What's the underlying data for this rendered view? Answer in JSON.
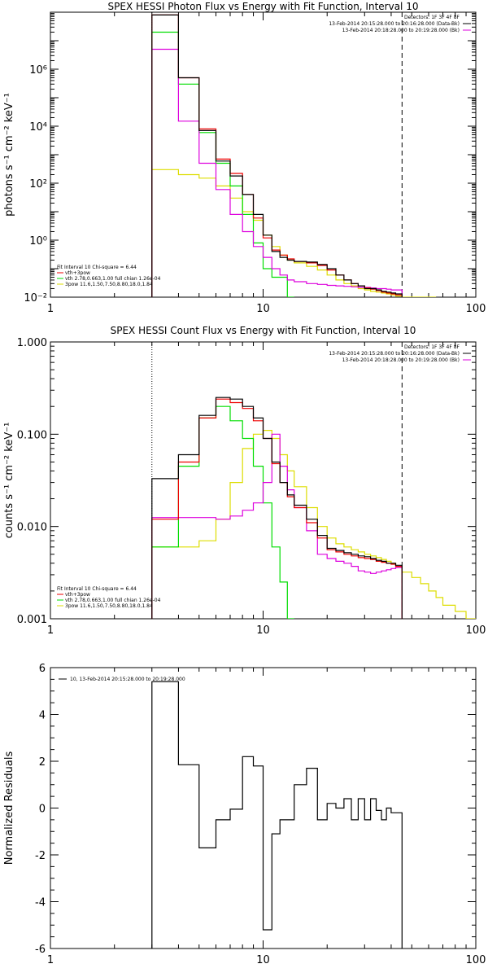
{
  "colors": {
    "total": "#000000",
    "vth": "#00dd00",
    "pow": "#dddd00",
    "sum": "#ee0000",
    "bk": "#dd00dd",
    "resid": "#000000"
  },
  "chart_data": [
    {
      "type": "line",
      "title": "SPEX HESSI Photon Flux vs Energy with Fit Function, Interval 10",
      "ylabel": "photons s⁻¹ cm⁻² keV⁻¹",
      "xlabel": "",
      "xscale": "log",
      "yscale": "log",
      "xlim": [
        1,
        100
      ],
      "ylim": [
        0.01,
        100000000.0
      ],
      "xtick_labels": [
        "1",
        "10",
        "100"
      ],
      "ytick_labels": [
        "10⁻²",
        "10⁰",
        "10²",
        "10⁴",
        "10⁶"
      ],
      "legend_top": [
        "Detectors: 1F 3F 4F 8F",
        "13-Feb-2014 20:15:28.000 to 20:16:28.000 (Data-Bk)",
        "13-Feb-2014 20:18:28.000 to 20:19:28.000 (Bk)"
      ],
      "legend_top_series": [
        "total",
        "bk"
      ],
      "legend_bottom": [
        "Fit Interval 10   Chi-square = 6.44",
        "vth+3pow",
        "vth 2.78,0.663,1.00  full chian 1.26e-04",
        "3pow 11.6,1.50,7.50,8.80,18.0,1.84"
      ],
      "legend_bottom_series": [
        "none",
        "sum",
        "vth",
        "pow"
      ],
      "dotted_line_x": 3,
      "dashed_line_x": 45,
      "series": [
        {
          "name": "Data-Bk",
          "key": "total",
          "edges": [
            3,
            4,
            5,
            6,
            7,
            8,
            9,
            10,
            11,
            12,
            13,
            14,
            16,
            18,
            20,
            22,
            24,
            26,
            28,
            30,
            32,
            34,
            36,
            38,
            40,
            42,
            45
          ],
          "values": [
            80000000.0,
            500000,
            7000,
            600,
            180,
            40,
            8,
            1.5,
            0.4,
            0.25,
            0.2,
            0.18,
            0.17,
            0.14,
            0.1,
            0.06,
            0.04,
            0.03,
            0.025,
            0.02,
            0.02,
            0.018,
            0.016,
            0.015,
            0.014,
            0.013
          ]
        },
        {
          "name": "vth+3pow",
          "key": "sum",
          "edges": [
            3,
            4,
            5,
            6,
            7,
            8,
            9,
            10,
            11,
            12,
            13,
            14,
            16,
            18,
            20,
            22,
            24,
            26,
            28,
            30,
            32,
            34,
            36,
            38,
            40,
            42,
            45
          ],
          "values": [
            80000000.0,
            500000,
            8000,
            700,
            220,
            40,
            6,
            1.2,
            0.45,
            0.3,
            0.22,
            0.18,
            0.16,
            0.13,
            0.09,
            0.06,
            0.04,
            0.03,
            0.025,
            0.021,
            0.019,
            0.017,
            0.015,
            0.014,
            0.013,
            0.012
          ]
        },
        {
          "name": "vth",
          "key": "vth",
          "edges": [
            3,
            4,
            5,
            6,
            7,
            8,
            9,
            10,
            11,
            12,
            13,
            14
          ],
          "values": [
            20000000.0,
            300000,
            6000,
            500,
            80,
            8,
            0.8,
            0.1,
            0.05,
            0.05,
            0.01
          ]
        },
        {
          "name": "3pow",
          "key": "pow",
          "edges": [
            3,
            4,
            5,
            6,
            7,
            8,
            9,
            10,
            11,
            12,
            13,
            14,
            16,
            18,
            20,
            22,
            24,
            26,
            28,
            30,
            32,
            34,
            36,
            38,
            40,
            42,
            45,
            50,
            55,
            60,
            65
          ],
          "values": [
            300,
            200,
            150,
            80,
            30,
            10,
            5,
            1.5,
            0.6,
            0.3,
            0.2,
            0.16,
            0.12,
            0.09,
            0.06,
            0.04,
            0.03,
            0.025,
            0.02,
            0.018,
            0.016,
            0.015,
            0.014,
            0.013,
            0.012,
            0.011,
            0.01,
            0.009,
            0.008,
            0.007
          ]
        },
        {
          "name": "Bk",
          "key": "bk",
          "edges": [
            3,
            4,
            5,
            6,
            7,
            8,
            9,
            10,
            11,
            12,
            13,
            14,
            16,
            18,
            20,
            22,
            24,
            26,
            28,
            30,
            32,
            34,
            36,
            38,
            40,
            42,
            45
          ],
          "values": [
            5000000.0,
            15000,
            500,
            60,
            8,
            2,
            0.6,
            0.25,
            0.1,
            0.06,
            0.04,
            0.035,
            0.03,
            0.028,
            0.026,
            0.025,
            0.024,
            0.023,
            0.022,
            0.022,
            0.021,
            0.02,
            0.02,
            0.019,
            0.018,
            0.018
          ]
        }
      ]
    },
    {
      "type": "line",
      "title": "SPEX HESSI Count Flux vs Energy with Fit Function, Interval 10",
      "ylabel": "counts s⁻¹ cm⁻² keV⁻¹",
      "xlabel": "",
      "xscale": "log",
      "yscale": "log",
      "xlim": [
        1,
        100
      ],
      "ylim": [
        0.001,
        1.0
      ],
      "xtick_labels": [
        "1",
        "10",
        "100"
      ],
      "ytick_labels": [
        "0.001",
        "0.010",
        "0.100",
        "1.000"
      ],
      "legend_top": [
        "Detectors: 1F 3F 4F 8F",
        "13-Feb-2014 20:15:28.000 to 20:16:28.000 (Data-Bk)",
        "13-Feb-2014 20:18:28.000 to 20:19:28.000 (Bk)"
      ],
      "legend_top_series": [
        "total",
        "bk"
      ],
      "legend_bottom": [
        "Fit Interval 10   Chi-square = 6.44",
        "vth+3pow",
        "vth 2.78,0.663,1.00  full chian 1.26e-04",
        "3pow 11.6,1.50,7.50,8.80,18.0,1.84"
      ],
      "legend_bottom_series": [
        "none",
        "sum",
        "vth",
        "pow"
      ],
      "dotted_line_x": 3,
      "dashed_line_x": 45,
      "series": [
        {
          "name": "Data-Bk",
          "key": "total",
          "edges": [
            3,
            4,
            5,
            6,
            7,
            8,
            9,
            10,
            11,
            12,
            13,
            14,
            16,
            18,
            20,
            22,
            24,
            26,
            28,
            30,
            32,
            34,
            36,
            38,
            40,
            42,
            45
          ],
          "values": [
            0.033,
            0.06,
            0.16,
            0.25,
            0.24,
            0.2,
            0.15,
            0.09,
            0.05,
            0.03,
            0.022,
            0.017,
            0.012,
            0.008,
            0.0058,
            0.0055,
            0.0052,
            0.005,
            0.0048,
            0.0047,
            0.0045,
            0.0043,
            0.0042,
            0.004,
            0.004,
            0.0038
          ]
        },
        {
          "name": "vth+3pow",
          "key": "sum",
          "edges": [
            3,
            4,
            5,
            6,
            7,
            8,
            9,
            10,
            11,
            12,
            13,
            14,
            16,
            18,
            20,
            22,
            24,
            26,
            28,
            30,
            32,
            34,
            36,
            38,
            40,
            42,
            45
          ],
          "values": [
            0.012,
            0.05,
            0.15,
            0.24,
            0.22,
            0.19,
            0.14,
            0.09,
            0.048,
            0.03,
            0.021,
            0.016,
            0.011,
            0.0075,
            0.0056,
            0.0053,
            0.005,
            0.0048,
            0.0046,
            0.0045,
            0.0044,
            0.0042,
            0.0041,
            0.004,
            0.0039,
            0.0037
          ]
        },
        {
          "name": "vth",
          "key": "vth",
          "edges": [
            3,
            4,
            5,
            6,
            7,
            8,
            9,
            10,
            11,
            12,
            13,
            14
          ],
          "values": [
            0.006,
            0.045,
            0.15,
            0.2,
            0.14,
            0.09,
            0.045,
            0.018,
            0.006,
            0.0025,
            0.001
          ]
        },
        {
          "name": "3pow",
          "key": "pow",
          "edges": [
            3,
            4,
            5,
            6,
            7,
            8,
            9,
            10,
            11,
            12,
            13,
            14,
            16,
            18,
            20,
            22,
            24,
            26,
            28,
            30,
            32,
            34,
            36,
            38,
            40,
            42,
            45,
            50,
            55,
            60,
            65,
            70,
            80,
            90,
            100
          ],
          "values": [
            0.006,
            0.006,
            0.007,
            0.012,
            0.03,
            0.07,
            0.1,
            0.11,
            0.09,
            0.06,
            0.04,
            0.027,
            0.016,
            0.01,
            0.0075,
            0.0065,
            0.006,
            0.0056,
            0.0053,
            0.005,
            0.0048,
            0.0046,
            0.0044,
            0.0042,
            0.004,
            0.0037,
            0.0032,
            0.0028,
            0.0024,
            0.002,
            0.0017,
            0.0014,
            0.0012,
            0.001
          ]
        },
        {
          "name": "Bk",
          "key": "bk",
          "edges": [
            3,
            4,
            5,
            6,
            7,
            8,
            9,
            10,
            11,
            12,
            13,
            14,
            16,
            18,
            20,
            22,
            24,
            26,
            28,
            30,
            32,
            34,
            36,
            38,
            40,
            42,
            45
          ],
          "values": [
            0.0125,
            0.0125,
            0.0125,
            0.012,
            0.013,
            0.015,
            0.018,
            0.03,
            0.1,
            0.045,
            0.025,
            0.016,
            0.009,
            0.005,
            0.0045,
            0.0042,
            0.004,
            0.0037,
            0.0033,
            0.0032,
            0.0031,
            0.0032,
            0.0033,
            0.0034,
            0.0035,
            0.0036
          ]
        }
      ]
    },
    {
      "type": "line",
      "title": "",
      "ylabel": "Normalized Residuals",
      "xlabel": "",
      "xscale": "log",
      "yscale": "linear",
      "xlim": [
        1,
        100
      ],
      "ylim": [
        -6,
        6
      ],
      "xtick_labels": [
        "1",
        "10",
        "100"
      ],
      "ytick_labels": [
        "-6",
        "-4",
        "-2",
        "0",
        "2",
        "4",
        "6"
      ],
      "legend_top": [
        "10, 13-Feb-2014 20:15:28.000 to 20:19:28.000"
      ],
      "series": [
        {
          "name": "10, 13-Feb-2014 20:15:28.000 to 20:19:28.000",
          "key": "resid",
          "edges": [
            3,
            4,
            5,
            6,
            7,
            8,
            9,
            10,
            11,
            12,
            13,
            14,
            16,
            18,
            20,
            22,
            24,
            26,
            28,
            30,
            32,
            34,
            36,
            38,
            40,
            42,
            45
          ],
          "values": [
            5.4,
            1.85,
            -1.7,
            -0.5,
            -0.05,
            2.2,
            1.8,
            -5.2,
            -1.1,
            -0.5,
            -0.5,
            1.0,
            1.7,
            -0.5,
            0.2,
            0.0,
            0.4,
            -0.5,
            0.4,
            -0.5,
            0.4,
            -0.1,
            -0.5,
            0.0,
            -0.2,
            -0.2
          ]
        }
      ]
    }
  ]
}
